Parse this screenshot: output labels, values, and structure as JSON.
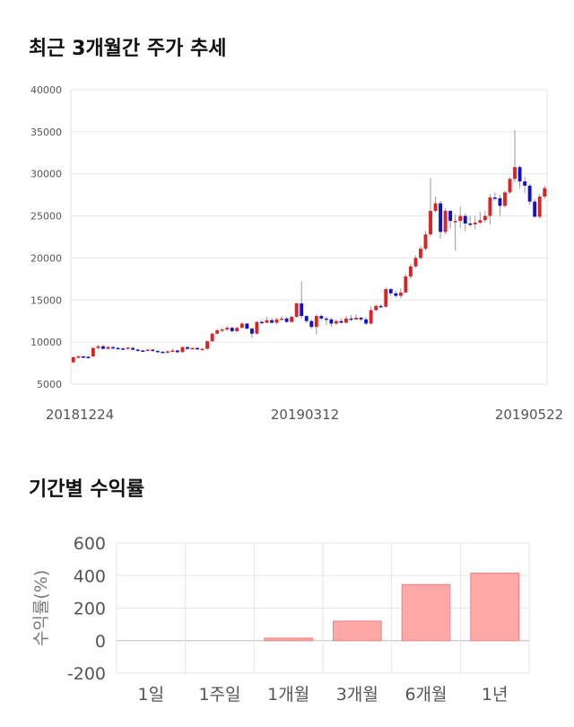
{
  "sections": {
    "price_title": "최근 3개월간 주가 추세",
    "returns_title": "기간별 수익률"
  },
  "chart_data": [
    {
      "type": "candlestick",
      "title": "최근 3개월간 주가 추세",
      "ylim": [
        5000,
        40000
      ],
      "yticks": [
        5000,
        10000,
        15000,
        20000,
        25000,
        30000,
        35000,
        40000
      ],
      "xtick_labels": [
        "20181224",
        "20190312",
        "20190522"
      ],
      "grid": true,
      "colors": {
        "up": "#dd2222",
        "down": "#1111cc"
      },
      "candles": [
        [
          7600,
          8200,
          7500,
          8300
        ],
        [
          8200,
          8300,
          8050,
          8450
        ],
        [
          8300,
          8250,
          8100,
          8400
        ],
        [
          8250,
          8200,
          8050,
          8350
        ],
        [
          8300,
          9300,
          8200,
          9450
        ],
        [
          9300,
          9500,
          9100,
          9700
        ],
        [
          9500,
          9200,
          9100,
          9700
        ],
        [
          9200,
          9400,
          9100,
          9600
        ],
        [
          9400,
          9300,
          9150,
          9600
        ],
        [
          9300,
          9250,
          9150,
          9450
        ],
        [
          9250,
          9200,
          9100,
          9350
        ],
        [
          9200,
          9350,
          9100,
          9400
        ],
        [
          9300,
          9100,
          9000,
          9450
        ],
        [
          9100,
          9000,
          8900,
          9250
        ],
        [
          9000,
          8950,
          8850,
          9100
        ],
        [
          8950,
          9100,
          8900,
          9150
        ],
        [
          9100,
          8950,
          8800,
          9200
        ],
        [
          8950,
          8850,
          8750,
          9050
        ],
        [
          8850,
          8800,
          8700,
          8950
        ],
        [
          8800,
          8900,
          8600,
          9000
        ],
        [
          8900,
          9000,
          8800,
          9200
        ],
        [
          9000,
          8800,
          8650,
          9100
        ],
        [
          8800,
          9400,
          8750,
          9500
        ],
        [
          9400,
          9200,
          9050,
          9500
        ],
        [
          9200,
          9300,
          9100,
          9350
        ],
        [
          9300,
          9150,
          9050,
          9400
        ],
        [
          9150,
          9200,
          9050,
          9300
        ],
        [
          9200,
          10100,
          9100,
          10200
        ],
        [
          10100,
          11000,
          10000,
          11100
        ],
        [
          11000,
          11400,
          10900,
          11600
        ],
        [
          11400,
          11500,
          11200,
          11700
        ],
        [
          11500,
          11700,
          11300,
          11900
        ],
        [
          11700,
          11300,
          11100,
          11800
        ],
        [
          11300,
          11700,
          11200,
          11800
        ],
        [
          11700,
          12200,
          11600,
          12400
        ],
        [
          12200,
          11600,
          11500,
          12300
        ],
        [
          11600,
          11000,
          10500,
          11700
        ],
        [
          11000,
          12400,
          10900,
          12500
        ],
        [
          12400,
          12300,
          12100,
          12700
        ],
        [
          12300,
          12600,
          12200,
          13000
        ],
        [
          12600,
          12300,
          12200,
          12900
        ],
        [
          12300,
          12700,
          12100,
          12900
        ],
        [
          12700,
          12800,
          12600,
          13100
        ],
        [
          12800,
          12400,
          12300,
          13000
        ],
        [
          12400,
          13000,
          12300,
          13200
        ],
        [
          13000,
          14600,
          12900,
          14700
        ],
        [
          14600,
          13100,
          12800,
          17200
        ],
        [
          13100,
          12500,
          12300,
          13200
        ],
        [
          12500,
          11800,
          11600,
          12700
        ],
        [
          11800,
          13100,
          10900,
          13300
        ],
        [
          13100,
          12800,
          12600,
          13300
        ],
        [
          12800,
          12700,
          12000,
          13000
        ],
        [
          12700,
          12200,
          11800,
          12900
        ],
        [
          12200,
          12500,
          12000,
          12700
        ],
        [
          12500,
          12300,
          12200,
          12800
        ],
        [
          12300,
          12800,
          12200,
          13100
        ],
        [
          12800,
          12700,
          12500,
          13200
        ],
        [
          12700,
          12900,
          12600,
          13300
        ],
        [
          12900,
          12700,
          12500,
          13000
        ],
        [
          12700,
          12200,
          12000,
          13000
        ],
        [
          12200,
          13800,
          12100,
          14300
        ],
        [
          13800,
          14300,
          13700,
          14500
        ],
        [
          14300,
          14200,
          14000,
          14500
        ],
        [
          14200,
          16300,
          14100,
          16500
        ],
        [
          16300,
          15800,
          15500,
          16400
        ],
        [
          15800,
          15500,
          15300,
          16100
        ],
        [
          15500,
          15900,
          15200,
          16400
        ],
        [
          15900,
          17800,
          15800,
          18100
        ],
        [
          17800,
          19000,
          17500,
          19300
        ],
        [
          19000,
          20000,
          18800,
          20300
        ],
        [
          20000,
          21100,
          19800,
          21400
        ],
        [
          21100,
          22800,
          20900,
          23200
        ],
        [
          22800,
          25600,
          22600,
          29500
        ],
        [
          25600,
          26500,
          25400,
          27300
        ],
        [
          26500,
          23100,
          22300,
          26800
        ],
        [
          23100,
          25600,
          22800,
          25900
        ],
        [
          25600,
          24400,
          23500,
          25700
        ],
        [
          24400,
          24400,
          20900,
          25200
        ],
        [
          24400,
          25000,
          23600,
          26100
        ],
        [
          25000,
          24100,
          23200,
          25300
        ],
        [
          24100,
          24000,
          23700,
          25000
        ],
        [
          24000,
          24200,
          23400,
          25000
        ],
        [
          24200,
          24500,
          24000,
          25500
        ],
        [
          24500,
          25000,
          24200,
          25600
        ],
        [
          25000,
          27200,
          24000,
          27600
        ],
        [
          27200,
          27100,
          26800,
          27800
        ],
        [
          27100,
          26200,
          25000,
          27500
        ],
        [
          26200,
          27800,
          26000,
          28000
        ],
        [
          27800,
          29400,
          27600,
          29600
        ],
        [
          29400,
          30800,
          29000,
          35200
        ],
        [
          30800,
          29100,
          28300,
          31000
        ],
        [
          29100,
          28600,
          27700,
          29600
        ],
        [
          28600,
          26700,
          26300,
          28800
        ],
        [
          26700,
          24900,
          24800,
          27000
        ],
        [
          24900,
          27300,
          24700,
          27600
        ],
        [
          27300,
          28300,
          27000,
          28600
        ]
      ]
    },
    {
      "type": "bar",
      "categories": [
        "1일",
        "1주일",
        "1개월",
        "3개월",
        "6개월",
        "1년"
      ],
      "values": [
        0,
        0,
        15,
        120,
        345,
        415
      ],
      "ylabel": "수익률(%)",
      "ylim": [
        -200,
        600
      ],
      "yticks": [
        600,
        400,
        200,
        0,
        -200
      ],
      "grid": true,
      "colors": {
        "fill": "#ffa8a8",
        "stroke": "#ee8080"
      }
    }
  ]
}
